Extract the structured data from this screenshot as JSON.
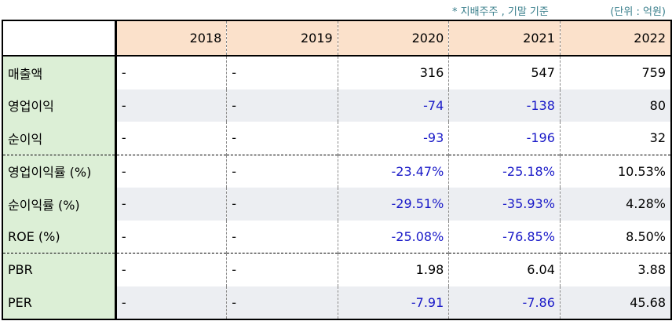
{
  "note": "* 지배주주 , 기말 기준",
  "unit": "(단위 : 억원)",
  "years": [
    "2018",
    "2019",
    "2020",
    "2021",
    "2022"
  ],
  "rows": [
    {
      "label": "매출액",
      "values": [
        "-",
        "-",
        "316",
        "547",
        "759"
      ]
    },
    {
      "label": "영업이익",
      "values": [
        "-",
        "-",
        "-74",
        "-138",
        "80"
      ]
    },
    {
      "label": "순이익",
      "values": [
        "-",
        "-",
        "-93",
        "-196",
        "32"
      ]
    },
    {
      "label": "영업이익률 (%)",
      "values": [
        "-",
        "-",
        "-23.47%",
        "-25.18%",
        "10.53%"
      ]
    },
    {
      "label": "순이익률 (%)",
      "values": [
        "-",
        "-",
        "-29.51%",
        "-35.93%",
        "4.28%"
      ]
    },
    {
      "label": "ROE (%)",
      "values": [
        "-",
        "-",
        "-25.08%",
        "-76.85%",
        "8.50%"
      ]
    },
    {
      "label": "PBR",
      "values": [
        "-",
        "-",
        "1.98",
        "6.04",
        "3.88"
      ]
    },
    {
      "label": "PER",
      "values": [
        "-",
        "-",
        "-7.91",
        "-7.86",
        "45.68"
      ]
    }
  ],
  "colors": {
    "negative": "#1a1ac8",
    "header_bg": "#fbe1cb",
    "label_bg": "#dcefd6",
    "note": "#3a7f8c"
  }
}
